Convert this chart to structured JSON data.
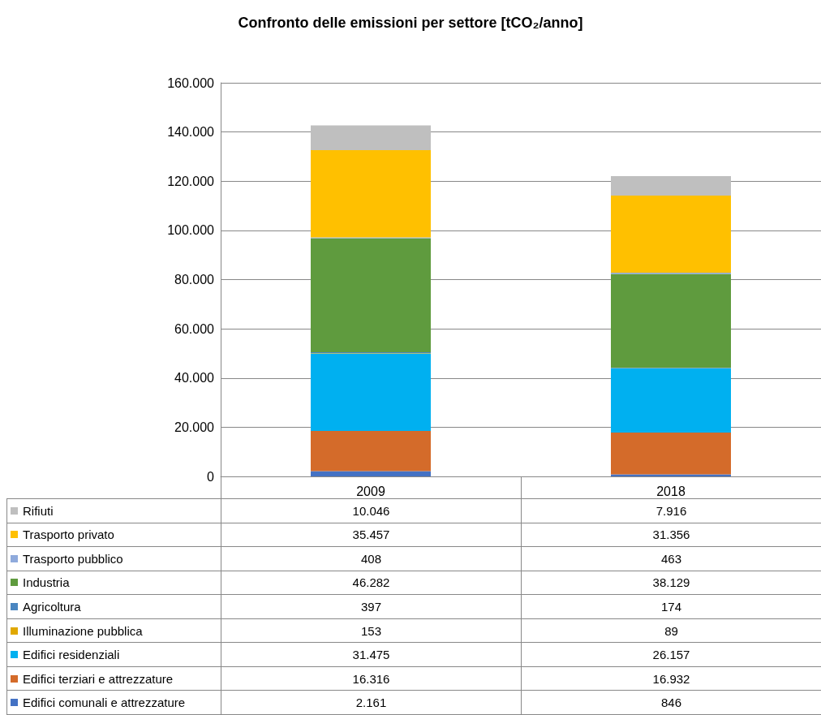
{
  "chart_data": {
    "type": "bar",
    "title": "Confronto delle emissioni per settore [tCO₂/anno]",
    "categories": [
      "2009",
      "2018"
    ],
    "stacked": true,
    "legend": "bottom",
    "grid": "y",
    "ylim": [
      0,
      160000
    ],
    "yticks": [
      {
        "value": 0,
        "label": "0"
      },
      {
        "value": 20000,
        "label": "20.000"
      },
      {
        "value": 40000,
        "label": "40.000"
      },
      {
        "value": 60000,
        "label": "60.000"
      },
      {
        "value": 80000,
        "label": "80.000"
      },
      {
        "value": 100000,
        "label": "100.000"
      },
      {
        "value": 120000,
        "label": "120.000"
      },
      {
        "value": 140000,
        "label": "140.000"
      },
      {
        "value": 160000,
        "label": "160.000"
      }
    ],
    "series": [
      {
        "name": "Edifici comunali e attrezzature",
        "color": "#4472c4",
        "values": [
          2161,
          846
        ],
        "value_labels": [
          "2.161",
          "846"
        ]
      },
      {
        "name": "Edifici terziari e attrezzature",
        "color": "#d46b2a",
        "values": [
          16316,
          16932
        ],
        "value_labels": [
          "16.316",
          "16.932"
        ]
      },
      {
        "name": "Edifici residenziali",
        "color": "#00b0f0",
        "values": [
          31475,
          26157
        ],
        "value_labels": [
          "31.475",
          "26.157"
        ]
      },
      {
        "name": "Illuminazione pubblica",
        "color": "#e0a800",
        "values": [
          153,
          89
        ],
        "value_labels": [
          "153",
          "89"
        ]
      },
      {
        "name": "Agricoltura",
        "color": "#4a86c0",
        "values": [
          397,
          174
        ],
        "value_labels": [
          "397",
          "174"
        ]
      },
      {
        "name": "Industria",
        "color": "#5f9b3e",
        "values": [
          46282,
          38129
        ],
        "value_labels": [
          "46.282",
          "38.129"
        ]
      },
      {
        "name": "Trasporto pubblico",
        "color": "#8faadc",
        "values": [
          408,
          463
        ],
        "value_labels": [
          "408",
          "463"
        ]
      },
      {
        "name": "Trasporto privato",
        "color": "#ffc000",
        "values": [
          35457,
          31356
        ],
        "value_labels": [
          "35.457",
          "31.356"
        ]
      },
      {
        "name": "Rifiuti",
        "color": "#bfbfbf",
        "values": [
          10046,
          7916
        ],
        "value_labels": [
          "10.046",
          "7.916"
        ]
      }
    ]
  }
}
